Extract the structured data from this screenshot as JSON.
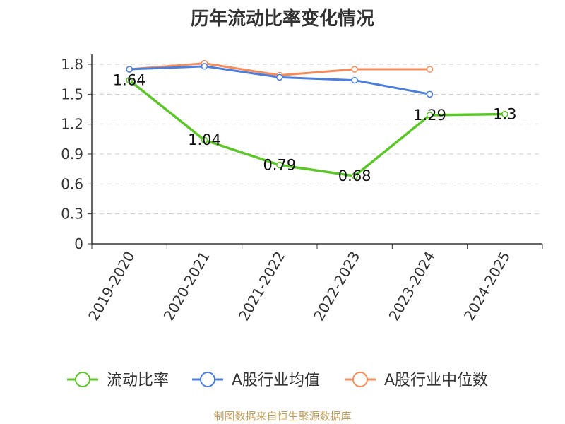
{
  "chart_data": {
    "type": "line",
    "title": "历年流动比率变化情况",
    "categories": [
      "2019-2020",
      "2020-2021",
      "2021-2022",
      "2022-2023",
      "2023-2024",
      "2024-2025"
    ],
    "ylim": [
      0,
      1.8
    ],
    "yticks": [
      0,
      0.3,
      0.6,
      0.9,
      1.2,
      1.5,
      1.8
    ],
    "grid": true,
    "legend_position": "bottom",
    "series": [
      {
        "name": "流动比率",
        "color": "#5cc52a",
        "values": [
          1.64,
          1.04,
          0.79,
          0.68,
          1.29,
          1.3
        ],
        "labels": [
          "1.64",
          "1.04",
          "0.79",
          "0.68",
          "1.29",
          "1.3"
        ]
      },
      {
        "name": "A股行业均值",
        "color": "#4c7fdc",
        "values": [
          1.75,
          1.78,
          1.67,
          1.64,
          1.5,
          null
        ]
      },
      {
        "name": "A股行业中位数",
        "color": "#f58c5c",
        "values": [
          1.75,
          1.81,
          1.69,
          1.75,
          1.75,
          null
        ]
      }
    ]
  },
  "source": "制图数据来自恒生聚源数据库"
}
